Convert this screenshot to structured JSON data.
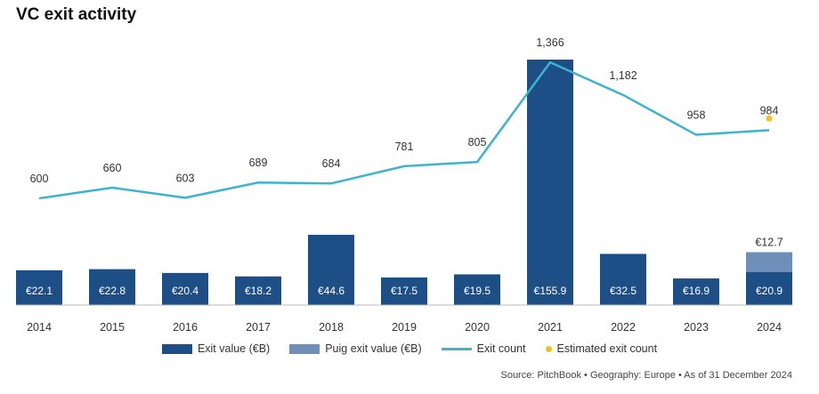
{
  "chart_data": {
    "type": "bar",
    "title": "VC exit activity",
    "categories": [
      "2014",
      "2015",
      "2016",
      "2017",
      "2018",
      "2019",
      "2020",
      "2021",
      "2022",
      "2023",
      "2024"
    ],
    "series": [
      {
        "name": "Exit value (€B)",
        "type": "bar",
        "values": [
          22.1,
          22.8,
          20.4,
          18.2,
          44.6,
          17.5,
          19.5,
          155.9,
          32.5,
          16.9,
          20.9
        ],
        "labels": [
          "€22.1",
          "€22.8",
          "€20.4",
          "€18.2",
          "€44.6",
          "€17.5",
          "€19.5",
          "€155.9",
          "€32.5",
          "€16.9",
          "€20.9"
        ]
      },
      {
        "name": "Puig exit value (€B)",
        "type": "bar-stacked",
        "values": [
          0,
          0,
          0,
          0,
          0,
          0,
          0,
          0,
          0,
          0,
          12.7
        ],
        "labels": [
          "",
          "",
          "",
          "",
          "",
          "",
          "",
          "",
          "",
          "",
          "€12.7"
        ]
      },
      {
        "name": "Exit count",
        "type": "line",
        "values": [
          600,
          660,
          603,
          689,
          684,
          781,
          805,
          1366,
          1182,
          958,
          984
        ],
        "labels": [
          "600",
          "660",
          "603",
          "689",
          "684",
          "781",
          "805",
          "1,366",
          "1,182",
          "958",
          "984"
        ]
      },
      {
        "name": "Estimated exit count",
        "type": "point",
        "values": [
          null,
          null,
          null,
          null,
          null,
          null,
          null,
          null,
          null,
          null,
          1050
        ]
      }
    ],
    "legend": [
      "Exit value (€B)",
      "Puig exit value (€B)",
      "Exit count",
      "Estimated exit count"
    ],
    "legend_position": "bottom",
    "source": "Source: PitchBook • Geography: Europe • As of 31 December 2024",
    "colors": {
      "exit_value": "#1d4e85",
      "puig": "#6d8fb8",
      "line": "#3bb4cc",
      "estimate": "#f2c21b",
      "axis": "#b8b8b8"
    }
  }
}
